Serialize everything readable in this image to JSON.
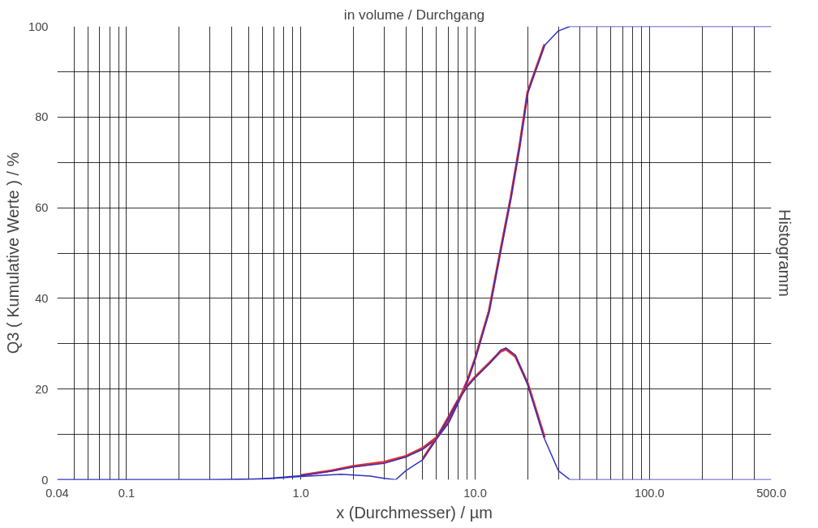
{
  "chart_data": {
    "type": "line",
    "title": "in volume / Durchgang",
    "xlabel": "x (Durchmesser) / µm",
    "ylabel": "Q3 ( Kumulative Werte ) / %",
    "y2label": "Histogramm",
    "log": "x",
    "grid": true,
    "marker": "none",
    "line_style": "solid",
    "xlim": [
      0.04,
      500
    ],
    "ylim": [
      0,
      100
    ],
    "xticks": [
      0.04,
      {
        "value": 0.05,
        "label": null
      },
      {
        "value": 0.06,
        "label": null
      },
      {
        "value": 0.07,
        "label": null
      },
      {
        "value": 0.08,
        "label": null
      },
      {
        "value": 0.09,
        "label": null
      },
      {
        "value": 0.1,
        "label": "0.1"
      },
      {
        "value": 0.2,
        "label": null
      },
      {
        "value": 0.3,
        "label": null
      },
      {
        "value": 0.4,
        "label": null
      },
      {
        "value": 0.5,
        "label": null
      },
      {
        "value": 0.6,
        "label": null
      },
      {
        "value": 0.7,
        "label": null
      },
      {
        "value": 0.8,
        "label": null
      },
      {
        "value": 0.9,
        "label": null
      },
      {
        "value": 1,
        "label": "1.0"
      },
      {
        "value": 2,
        "label": null
      },
      {
        "value": 3,
        "label": null
      },
      {
        "value": 4,
        "label": null
      },
      {
        "value": 5,
        "label": null
      },
      {
        "value": 6,
        "label": null
      },
      {
        "value": 7,
        "label": null
      },
      {
        "value": 8,
        "label": null
      },
      {
        "value": 9,
        "label": null
      },
      {
        "value": 10,
        "label": "10.0"
      },
      {
        "value": 20,
        "label": null
      },
      {
        "value": 30,
        "label": null
      },
      {
        "value": 40,
        "label": null
      },
      {
        "value": 50,
        "label": null
      },
      {
        "value": 60,
        "label": null
      },
      {
        "value": 70,
        "label": null
      },
      {
        "value": 80,
        "label": null
      },
      {
        "value": 90,
        "label": null
      },
      {
        "value": 100,
        "label": "100.0"
      },
      {
        "value": 200,
        "label": null
      },
      {
        "value": 300,
        "label": null
      },
      {
        "value": 400,
        "label": null
      },
      {
        "value": 500,
        "label": "500.0"
      }
    ],
    "yticks": [
      0,
      {
        "value": 10,
        "label": null
      },
      20,
      {
        "value": 30,
        "label": null
      },
      40,
      {
        "value": 50,
        "label": null
      },
      60,
      {
        "value": 70,
        "label": null
      },
      80,
      {
        "value": 90,
        "label": null
      },
      100
    ],
    "series": [
      {
        "color": "#e03030",
        "x": [
          1,
          1.5,
          2,
          3,
          4,
          5,
          6,
          7,
          8,
          9,
          10,
          12,
          14,
          16,
          18,
          20,
          25
        ],
        "values": [
          1,
          2,
          3,
          3.9,
          5.2,
          7,
          9.3,
          12.6,
          17.2,
          21.8,
          26.8,
          37.2,
          50.7,
          62.2,
          73.8,
          85.5,
          96
        ]
      },
      {
        "color": "#3030c0",
        "x": [
          0.04,
          0.3,
          0.6,
          1,
          1.5,
          2,
          3,
          4,
          5,
          6,
          7,
          8,
          9,
          10,
          12,
          14,
          16,
          18,
          20,
          25,
          30,
          35,
          500
        ],
        "values": [
          0,
          0,
          0.2,
          0.9,
          1.9,
          2.8,
          3.6,
          5,
          6.7,
          9,
          12.4,
          17,
          21.6,
          26.6,
          37,
          50.5,
          62,
          73.6,
          85.3,
          95.8,
          99,
          100,
          100
        ]
      },
      {
        "color": "#e03030",
        "x": [
          5,
          6,
          7,
          8,
          9,
          10,
          12,
          14,
          15,
          17,
          20,
          25
        ],
        "values": [
          4.6,
          9.2,
          13.7,
          17.7,
          20.7,
          22.7,
          25.7,
          28.3,
          28.8,
          27.2,
          21.3,
          9.3
        ]
      },
      {
        "color": "#3030c0",
        "x": [
          0.04,
          0.4,
          0.7,
          1,
          1.7,
          2.5,
          3,
          3.5,
          4,
          5,
          6,
          7,
          8,
          9,
          10,
          12,
          14,
          15,
          17,
          20,
          25,
          30,
          35,
          500
        ],
        "values": [
          0,
          0,
          0.3,
          0.7,
          1.2,
          0.8,
          0.3,
          0,
          2,
          4.4,
          9,
          13.5,
          17.5,
          20.5,
          22.5,
          25.5,
          28.6,
          29.1,
          27.5,
          21,
          9,
          2,
          0,
          0
        ]
      }
    ]
  }
}
